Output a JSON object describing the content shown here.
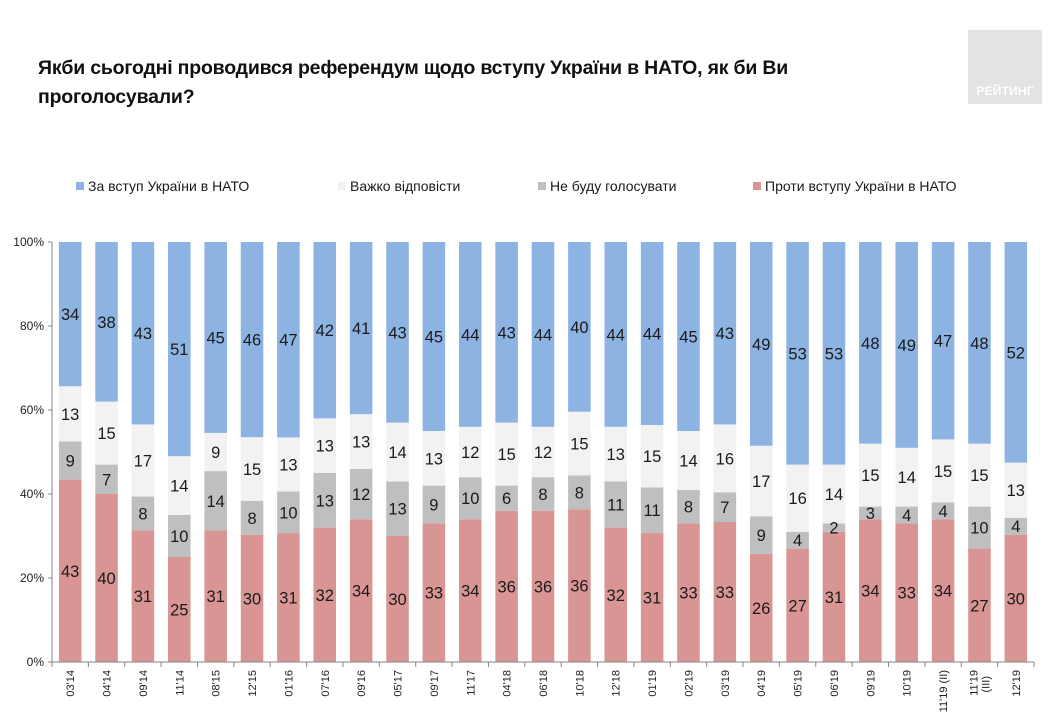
{
  "header": {
    "title_line1": "Якби сьогодні проводився референдум щодо вступу України в НАТО, як би Ви",
    "title_line2": "проголосували?",
    "logo_text": "РЕЙТИНГ"
  },
  "legend": [
    {
      "label": "За вступ України в НАТО",
      "color": "#8db3e2"
    },
    {
      "label": "Важко відповісти",
      "color": "#f2f2f2"
    },
    {
      "label": "Не буду голосувати",
      "color": "#bfbfbf"
    },
    {
      "label": "Проти вступу України в НАТО",
      "color": "#d99594"
    }
  ],
  "chart_data": {
    "type": "bar",
    "stacked": true,
    "normalized": "percent",
    "title": "Якби сьогодні проводився референдум щодо вступу України в НАТО, як би Ви проголосували?",
    "xlabel": "",
    "ylabel": "",
    "ylim": [
      0,
      100
    ],
    "yticks": [
      "0%",
      "20%",
      "40%",
      "60%",
      "80%",
      "100%"
    ],
    "grid": false,
    "legend_position": "top",
    "categories": [
      "03'14",
      "04'14",
      "09'14",
      "11'14",
      "08'15",
      "12'15",
      "01'16",
      "07'16",
      "09'16",
      "05'17",
      "09'17",
      "11'17",
      "04'18",
      "06'18",
      "10'18",
      "12'18",
      "01'19",
      "02'19",
      "03'19",
      "04'19",
      "05'19",
      "06'19",
      "09'19",
      "10'19",
      "11'19 (II)",
      "11'19 (III)",
      "12'19"
    ],
    "series": [
      {
        "name": "Проти вступу України в НАТО",
        "color": "#d99594",
        "values": [
          43,
          40,
          31,
          25,
          31,
          30,
          31,
          32,
          34,
          30,
          33,
          34,
          36,
          36,
          36,
          32,
          31,
          33,
          33,
          26,
          27,
          31,
          34,
          33,
          34,
          27,
          30
        ]
      },
      {
        "name": "Не буду голосувати",
        "color": "#bfbfbf",
        "values": [
          9,
          7,
          8,
          10,
          14,
          8,
          10,
          13,
          12,
          13,
          9,
          10,
          6,
          8,
          8,
          11,
          11,
          8,
          7,
          9,
          4,
          2,
          3,
          4,
          4,
          10,
          4
        ]
      },
      {
        "name": "Важко відповісти",
        "color": "#f2f2f2",
        "values": [
          13,
          15,
          17,
          14,
          9,
          15,
          13,
          13,
          13,
          14,
          13,
          12,
          15,
          12,
          15,
          13,
          15,
          14,
          16,
          17,
          16,
          14,
          15,
          14,
          15,
          15,
          13
        ]
      },
      {
        "name": "За вступ України в НАТО",
        "color": "#8db3e2",
        "values": [
          34,
          38,
          43,
          51,
          45,
          46,
          47,
          42,
          41,
          43,
          45,
          44,
          43,
          44,
          40,
          44,
          44,
          45,
          43,
          49,
          53,
          53,
          48,
          49,
          47,
          48,
          52
        ]
      }
    ]
  }
}
